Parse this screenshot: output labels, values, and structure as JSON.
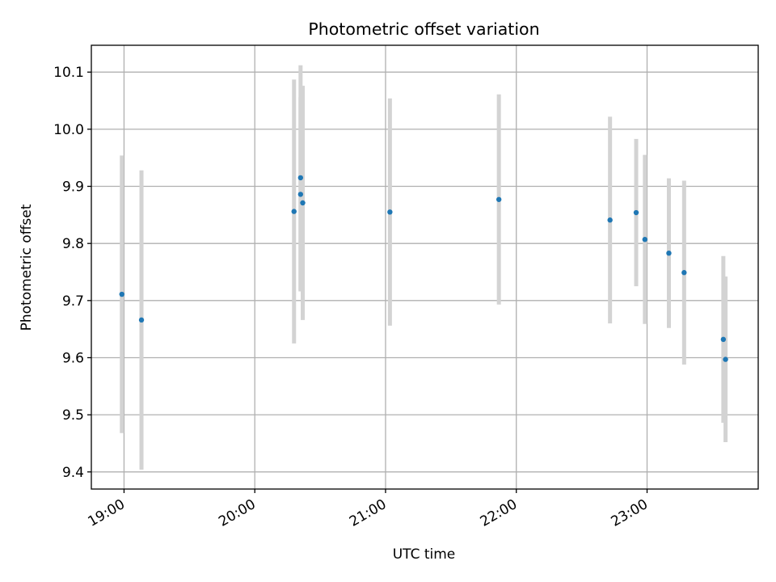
{
  "chart_data": {
    "type": "scatter",
    "title": "Photometric offset variation",
    "xlabel": "UTC time",
    "ylabel": "Photometric offset",
    "x_ticks": [
      "19:00",
      "20:00",
      "21:00",
      "22:00",
      "23:00"
    ],
    "y_ticks": [
      "9.4",
      "9.5",
      "9.6",
      "9.7",
      "9.8",
      "9.9",
      "10.0",
      "10.1"
    ],
    "xlim": [
      "18:45",
      "23:51"
    ],
    "ylim": [
      9.37,
      10.147
    ],
    "grid": true,
    "marker_color": "#1f77b4",
    "errorbar_color": "#d3d3d3",
    "points": [
      {
        "t": "18:59",
        "y": 9.711,
        "err": 0.243
      },
      {
        "t": "19:08",
        "y": 9.666,
        "err": 0.262
      },
      {
        "t": "20:18",
        "y": 9.856,
        "err": 0.231
      },
      {
        "t": "20:21",
        "y": 9.915,
        "err": 0.197
      },
      {
        "t": "20:21",
        "y": 9.886,
        "err": 0.17
      },
      {
        "t": "20:22",
        "y": 9.871,
        "err": 0.205
      },
      {
        "t": "21:02",
        "y": 9.855,
        "err": 0.199
      },
      {
        "t": "21:52",
        "y": 9.877,
        "err": 0.184
      },
      {
        "t": "22:43",
        "y": 9.841,
        "err": 0.181
      },
      {
        "t": "22:55",
        "y": 9.854,
        "err": 0.129
      },
      {
        "t": "22:59",
        "y": 9.807,
        "err": 0.148
      },
      {
        "t": "23:10",
        "y": 9.783,
        "err": 0.131
      },
      {
        "t": "23:17",
        "y": 9.749,
        "err": 0.161
      },
      {
        "t": "23:35",
        "y": 9.632,
        "err": 0.146
      },
      {
        "t": "23:36",
        "y": 9.597,
        "err": 0.145
      }
    ]
  }
}
